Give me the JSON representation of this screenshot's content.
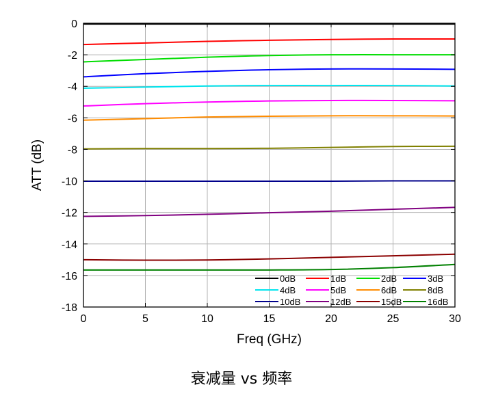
{
  "caption": "衰减量 vs 频率",
  "chart_data": {
    "type": "line",
    "title": "",
    "xlabel": "Freq (GHz)",
    "ylabel": "ATT (dB)",
    "xlim": [
      0,
      30
    ],
    "ylim": [
      -18,
      0
    ],
    "xticks": [
      0,
      5,
      10,
      15,
      20,
      25,
      30
    ],
    "yticks": [
      0,
      -2,
      -4,
      -6,
      -8,
      -10,
      -12,
      -14,
      -16,
      -18
    ],
    "grid": true,
    "legend_position": "bottom-right",
    "x": [
      0,
      5,
      10,
      15,
      20,
      25,
      30
    ],
    "series": [
      {
        "name": "0dB",
        "color": "#000000",
        "values": [
          -0.05,
          -0.05,
          -0.05,
          -0.05,
          -0.05,
          -0.05,
          -0.05
        ]
      },
      {
        "name": "1dB",
        "color": "#ff0000",
        "values": [
          -1.35,
          -1.25,
          -1.15,
          -1.08,
          -1.03,
          -1.0,
          -1.0
        ]
      },
      {
        "name": "2dB",
        "color": "#00dd00",
        "values": [
          -2.45,
          -2.3,
          -2.15,
          -2.05,
          -2.0,
          -2.0,
          -2.0
        ]
      },
      {
        "name": "3dB",
        "color": "#0000ff",
        "values": [
          -3.4,
          -3.2,
          -3.05,
          -2.95,
          -2.9,
          -2.9,
          -2.92
        ]
      },
      {
        "name": "4dB",
        "color": "#00e5ee",
        "values": [
          -4.12,
          -4.05,
          -3.98,
          -3.95,
          -3.95,
          -3.95,
          -3.98
        ]
      },
      {
        "name": "5dB",
        "color": "#ff00ff",
        "values": [
          -5.25,
          -5.1,
          -5.0,
          -4.93,
          -4.9,
          -4.9,
          -4.92
        ]
      },
      {
        "name": "6dB",
        "color": "#ff8c00",
        "values": [
          -6.15,
          -6.05,
          -5.95,
          -5.9,
          -5.87,
          -5.87,
          -5.88
        ]
      },
      {
        "name": "8dB",
        "color": "#808000",
        "values": [
          -7.97,
          -7.95,
          -7.95,
          -7.93,
          -7.88,
          -7.82,
          -7.8
        ]
      },
      {
        "name": "10dB",
        "color": "#00008b",
        "values": [
          -10.02,
          -10.02,
          -10.02,
          -10.02,
          -10.02,
          -10.0,
          -10.0
        ]
      },
      {
        "name": "12dB",
        "color": "#800080",
        "values": [
          -12.25,
          -12.2,
          -12.12,
          -12.02,
          -11.92,
          -11.8,
          -11.68
        ]
      },
      {
        "name": "15dB",
        "color": "#8b0000",
        "values": [
          -15.0,
          -15.03,
          -15.02,
          -14.95,
          -14.85,
          -14.75,
          -14.65
        ]
      },
      {
        "name": "16dB",
        "color": "#008000",
        "values": [
          -15.65,
          -15.65,
          -15.65,
          -15.65,
          -15.62,
          -15.5,
          -15.3
        ]
      }
    ]
  }
}
